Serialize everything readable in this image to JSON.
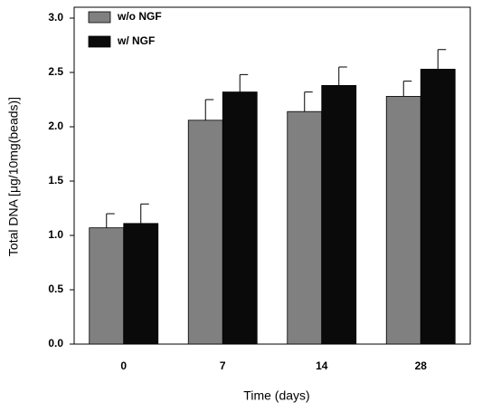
{
  "chart_data": {
    "type": "bar",
    "x_label": "Time (days)",
    "y_label": "Total DNA [μg/10mg(beads)]",
    "categories": [
      "0",
      "7",
      "14",
      "28"
    ],
    "series": [
      {
        "name": "w/o NGF",
        "color": "#808080",
        "values": [
          1.07,
          2.06,
          2.14,
          2.28
        ],
        "errors": [
          0.13,
          0.19,
          0.18,
          0.14
        ]
      },
      {
        "name": "w/ NGF",
        "color": "#0a0a0a",
        "values": [
          1.11,
          2.32,
          2.38,
          2.53
        ],
        "errors": [
          0.18,
          0.16,
          0.17,
          0.18
        ]
      }
    ],
    "ylim": [
      0,
      3.1
    ],
    "yticks": [
      {
        "value": 0,
        "label": "0.0"
      },
      0.5,
      {
        "value": 1,
        "label": "1.0"
      },
      1.5,
      {
        "value": 2,
        "label": "2.0"
      },
      2.5,
      {
        "value": 3,
        "label": "3.0"
      }
    ],
    "grid": false,
    "legend": "upper left"
  }
}
